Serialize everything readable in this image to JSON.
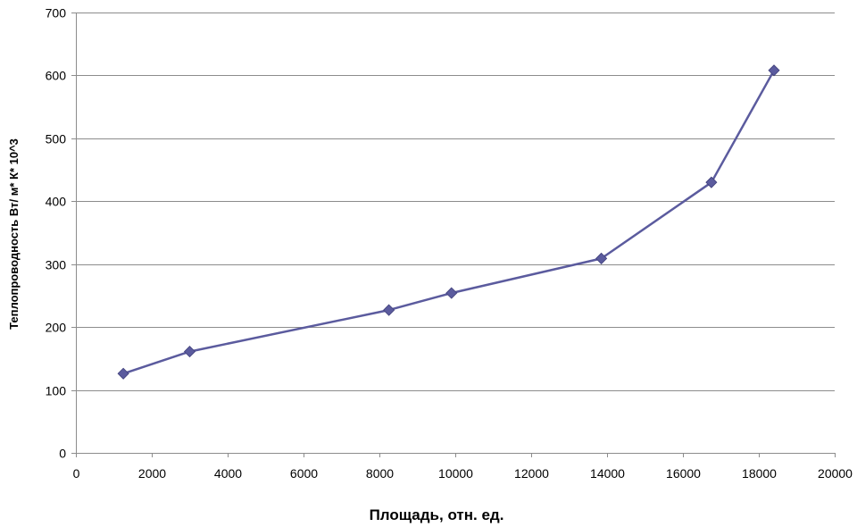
{
  "chart_data": {
    "type": "line",
    "title": "",
    "xlabel": "Площадь, отн. ед.",
    "ylabel": "Теплопроводность Вт/ м* К* 10^3",
    "xlim": [
      0,
      20000
    ],
    "ylim": [
      0,
      700
    ],
    "xticks": [
      0,
      2000,
      4000,
      6000,
      8000,
      10000,
      12000,
      14000,
      16000,
      18000,
      20000
    ],
    "yticks": [
      0,
      100,
      200,
      300,
      400,
      500,
      600,
      700
    ],
    "grid": "horizontal",
    "legend": "none",
    "series": [
      {
        "color": "#5b5b9e",
        "marker": "diamond",
        "points": [
          {
            "x": 1250,
            "y": 126
          },
          {
            "x": 3000,
            "y": 161
          },
          {
            "x": 8250,
            "y": 227
          },
          {
            "x": 9900,
            "y": 254
          },
          {
            "x": 13850,
            "y": 309
          },
          {
            "x": 16750,
            "y": 430
          },
          {
            "x": 18400,
            "y": 608
          }
        ]
      }
    ]
  }
}
